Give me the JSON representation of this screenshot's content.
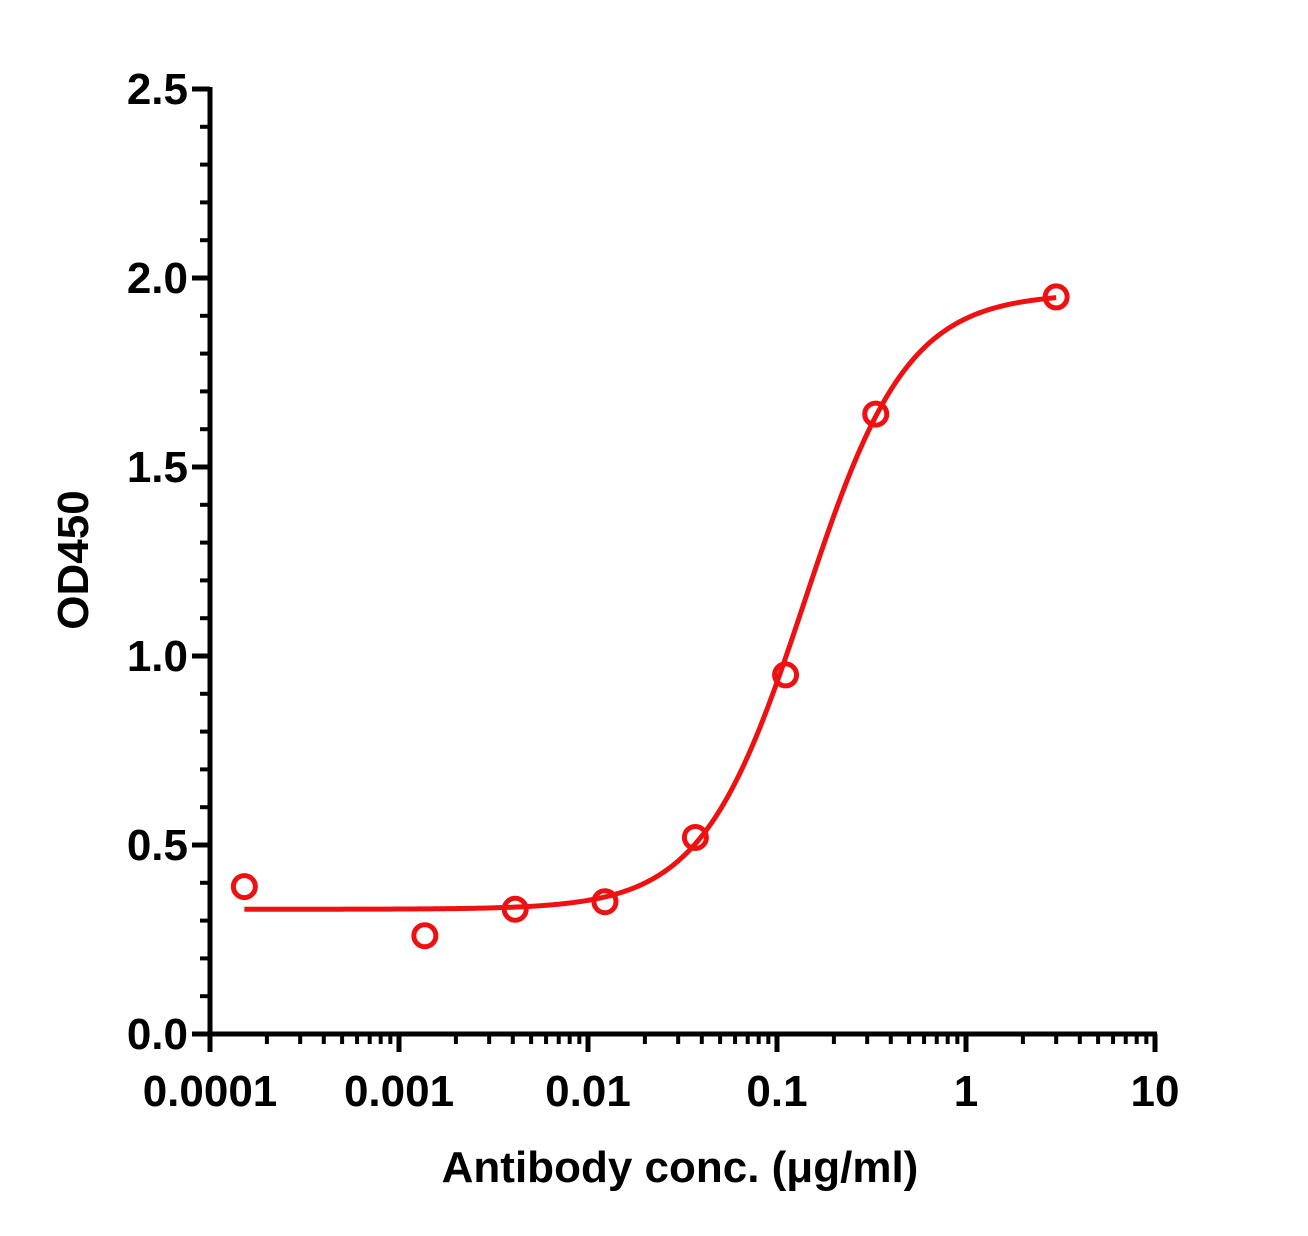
{
  "chart_data": {
    "type": "scatter",
    "xlabel": "Antibody conc. (μg/ml)",
    "ylabel": "OD450",
    "x_scale": "log",
    "xlim": [
      0.0001,
      10
    ],
    "ylim": [
      0,
      2.5
    ],
    "x_ticks": [
      "0.0001",
      "0.001",
      "0.01",
      "0.1",
      "1",
      "10"
    ],
    "y_ticks": [
      "0.0",
      "0.5",
      "1.0",
      "1.5",
      "2.0",
      "2.5"
    ],
    "grid": false,
    "color": "#ee1111",
    "series": [
      {
        "points": [
          {
            "x": 0.000152,
            "y": 0.39
          },
          {
            "x": 0.00137,
            "y": 0.26
          },
          {
            "x": 0.00412,
            "y": 0.33
          },
          {
            "x": 0.0123,
            "y": 0.35
          },
          {
            "x": 0.037,
            "y": 0.52
          },
          {
            "x": 0.111,
            "y": 0.95
          },
          {
            "x": 0.333,
            "y": 1.64
          },
          {
            "x": 3.0,
            "y": 1.95
          }
        ],
        "fit": {
          "model": "4PL",
          "bottom": 0.33,
          "top": 1.96,
          "ec50": 0.14,
          "hill": 1.6,
          "x_range": [
            0.000152,
            3.0
          ]
        }
      }
    ]
  }
}
